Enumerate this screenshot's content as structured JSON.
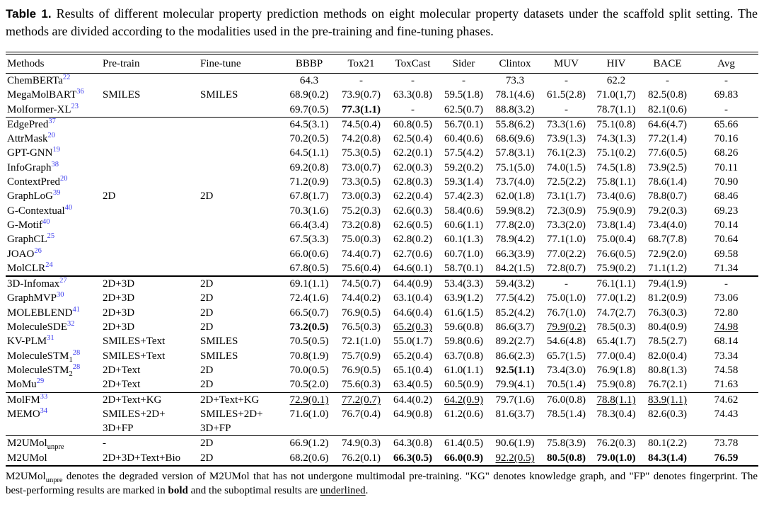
{
  "caption": {
    "label": "Table 1.",
    "text": "Results of different molecular property prediction methods on eight molecular property datasets under the scaffold split setting. The methods are divided according to the modalities used in the pre-training and fine-tuning phases."
  },
  "colors": {
    "citation_blue": "#3b3bee",
    "text": "#000000",
    "background": "#ffffff"
  },
  "table": {
    "columns": [
      "Methods",
      "Pre-train",
      "Fine-tune",
      "BBBP",
      "Tox21",
      "ToxCast",
      "Sider",
      "Clintox",
      "MUV",
      "HIV",
      "BACE",
      "Avg"
    ],
    "groups": [
      {
        "shared": {
          "pretrain": "SMILES",
          "finetune": "SMILES"
        },
        "rows": [
          {
            "method": "ChemBERTa",
            "ref": "22",
            "cells": [
              "64.3",
              "-",
              "-",
              "-",
              "73.3",
              "-",
              "62.2",
              "-",
              "-"
            ]
          },
          {
            "method": "MegaMolBART",
            "ref": "36",
            "cells": [
              "68.9(0.2)",
              "73.9(0.7)",
              "63.3(0.8)",
              "59.5(1.8)",
              "78.1(4.6)",
              "61.5(2.8)",
              "71.0(1,7)",
              "82.5(0.8)",
              "69.83"
            ]
          },
          {
            "method": "Molformer-XL",
            "ref": "23",
            "cells": [
              "69.7(0.5)",
              {
                "v": "77.3(1.1)",
                "b": true
              },
              "-",
              "62.5(0.7)",
              "88.8(3.2)",
              "-",
              "78.7(1.1)",
              "82.1(0.6)",
              "-"
            ]
          }
        ]
      },
      {
        "shared": {
          "pretrain": "2D",
          "finetune": "2D"
        },
        "rows": [
          {
            "method": "EdgePred",
            "ref": "37",
            "cells": [
              "64.5(3.1)",
              "74.5(0.4)",
              "60.8(0.5)",
              "56.7(0.1)",
              "55.8(6.2)",
              "73.3(1.6)",
              "75.1(0.8)",
              "64.6(4.7)",
              "65.66"
            ]
          },
          {
            "method": "AttrMask",
            "ref": "20",
            "cells": [
              "70.2(0.5)",
              "74.2(0.8)",
              "62.5(0.4)",
              "60.4(0.6)",
              "68.6(9.6)",
              "73.9(1.3)",
              "74.3(1.3)",
              "77.2(1.4)",
              "70.16"
            ]
          },
          {
            "method": "GPT-GNN",
            "ref": "19",
            "cells": [
              "64.5(1.1)",
              "75.3(0.5)",
              "62.2(0.1)",
              "57.5(4.2)",
              "57.8(3.1)",
              "76.1(2.3)",
              "75.1(0.2)",
              "77.6(0.5)",
              "68.26"
            ]
          },
          {
            "method": "InfoGraph",
            "ref": "38",
            "cells": [
              "69.2(0.8)",
              "73.0(0.7)",
              "62.0(0.3)",
              "59.2(0.2)",
              "75.1(5.0)",
              "74.0(1.5)",
              "74.5(1.8)",
              "73.9(2.5)",
              "70.11"
            ]
          },
          {
            "method": "ContextPred",
            "ref": "20",
            "cells": [
              "71.2(0.9)",
              "73.3(0.5)",
              "62.8(0.3)",
              "59.3(1.4)",
              "73.7(4.0)",
              "72.5(2.2)",
              "75.8(1.1)",
              "78.6(1.4)",
              "70.90"
            ]
          },
          {
            "method": "GraphLoG",
            "ref": "39",
            "cells": [
              "67.8(1.7)",
              "73.0(0.3)",
              "62.2(0.4)",
              "57.4(2.3)",
              "62.0(1.8)",
              "73.1(1.7)",
              "73.4(0.6)",
              "78.8(0.7)",
              "68.46"
            ]
          },
          {
            "method": "G-Contextual",
            "ref": "40",
            "cells": [
              "70.3(1.6)",
              "75.2(0.3)",
              "62.6(0.3)",
              "58.4(0.6)",
              "59.9(8.2)",
              "72.3(0.9)",
              "75.9(0.9)",
              "79.2(0.3)",
              "69.23"
            ]
          },
          {
            "method": "G-Motif",
            "ref": "40",
            "cells": [
              "66.4(3.4)",
              "73.2(0.8)",
              "62.6(0.5)",
              "60.6(1.1)",
              "77.8(2.0)",
              "73.3(2.0)",
              "73.8(1.4)",
              "73.4(4.0)",
              "70.14"
            ]
          },
          {
            "method": "GraphCL",
            "ref": "25",
            "cells": [
              "67.5(3.3)",
              "75.0(0.3)",
              "62.8(0.2)",
              "60.1(1.3)",
              "78.9(4.2)",
              "77.1(1.0)",
              "75.0(0.4)",
              "68.7(7.8)",
              "70.64"
            ]
          },
          {
            "method": "JOAO",
            "ref": "26",
            "cells": [
              "66.0(0.6)",
              "74.4(0.7)",
              "62.7(0.6)",
              "60.7(1.0)",
              "66.3(3.9)",
              "77.0(2.2)",
              "76.6(0.5)",
              "72.9(2.0)",
              "69.58"
            ]
          },
          {
            "method": "MolCLR",
            "ref": "24",
            "cells": [
              "67.8(0.5)",
              "75.6(0.4)",
              "64.6(0.1)",
              "58.7(0.1)",
              "84.2(1.5)",
              "72.8(0.7)",
              "75.9(0.2)",
              "71.1(1.2)",
              "71.34"
            ]
          }
        ]
      },
      {
        "rows": [
          {
            "method": "3D-Infomax",
            "ref": "27",
            "pretrain": "2D+3D",
            "finetune": "2D",
            "cells": [
              "69.1(1.1)",
              "74.5(0.7)",
              "64.4(0.9)",
              "53.4(3.3)",
              "59.4(3.2)",
              "-",
              "76.1(1.1)",
              "79.4(1.9)",
              "-"
            ]
          },
          {
            "method": "GraphMVP",
            "ref": "30",
            "pretrain": "2D+3D",
            "finetune": "2D",
            "cells": [
              "72.4(1.6)",
              "74.4(0.2)",
              "63.1(0.4)",
              "63.9(1.2)",
              "77.5(4.2)",
              "75.0(1.0)",
              "77.0(1.2)",
              "81.2(0.9)",
              "73.06"
            ]
          },
          {
            "method": "MOLEBLEND",
            "ref": "41",
            "pretrain": "2D+3D",
            "finetune": "2D",
            "cells": [
              "66.5(0.7)",
              "76.9(0.5)",
              "64.6(0.4)",
              "61.6(1.5)",
              "85.2(4.2)",
              "76.7(1.0)",
              "74.7(2.7)",
              "76.3(0.3)",
              "72.80"
            ]
          },
          {
            "method": "MoleculeSDE",
            "ref": "32",
            "pretrain": "2D+3D",
            "finetune": "2D",
            "cells": [
              {
                "v": "73.2(0.5)",
                "b": true
              },
              "76.5(0.3)",
              {
                "v": "65.2(0.3)",
                "u": true
              },
              "59.6(0.8)",
              "86.6(3.7)",
              {
                "v": "79.9(0.2)",
                "u": true
              },
              "78.5(0.3)",
              "80.4(0.9)",
              {
                "v": "74.98",
                "u": true
              }
            ]
          },
          {
            "method": "KV-PLM",
            "ref": "31",
            "pretrain": "SMILES+Text",
            "finetune": "SMILES",
            "cells": [
              "70.5(0.5)",
              "72.1(1.0)",
              "55.0(1.7)",
              "59.8(0.6)",
              "89.2(2.7)",
              "54.6(4.8)",
              "65.4(1.7)",
              "78.5(2.7)",
              "68.14"
            ]
          },
          {
            "method": "MoleculeSTM",
            "sub": "1",
            "ref": "28",
            "pretrain": "SMILES+Text",
            "finetune": "SMILES",
            "cells": [
              "70.8(1.9)",
              "75.7(0.9)",
              "65.2(0.4)",
              "63.7(0.8)",
              "86.6(2.3)",
              "65.7(1.5)",
              "77.0(0.4)",
              "82.0(0.4)",
              "73.34"
            ]
          },
          {
            "method": "MoleculeSTM",
            "sub": "2",
            "ref": "28",
            "pretrain": "2D+Text",
            "finetune": "2D",
            "cells": [
              "70.0(0.5)",
              "76.9(0.5)",
              "65.1(0.4)",
              "61.0(1.1)",
              {
                "v": "92.5(1.1)",
                "b": true
              },
              "73.4(3.0)",
              "76.9(1.8)",
              "80.8(1.3)",
              "74.58"
            ]
          },
          {
            "method": "MoMu",
            "ref": "29",
            "pretrain": "2D+Text",
            "finetune": "2D",
            "cells": [
              "70.5(2.0)",
              "75.6(0.3)",
              "63.4(0.5)",
              "60.5(0.9)",
              "79.9(4.1)",
              "70.5(1.4)",
              "75.9(0.8)",
              "76.7(2.1)",
              "71.63"
            ]
          }
        ]
      },
      {
        "rows": [
          {
            "method": "MolFM",
            "ref": "33",
            "pretrain": "2D+Text+KG",
            "finetune": "2D+Text+KG",
            "cells": [
              {
                "v": "72.9(0.1)",
                "u": true
              },
              {
                "v": "77.2(0.7)",
                "u": true
              },
              "64.4(0.2)",
              {
                "v": "64.2(0.9)",
                "u": true
              },
              "79.7(1.6)",
              "76.0(0.8)",
              {
                "v": "78.8(1.1)",
                "u": true
              },
              {
                "v": "83.9(1.1)",
                "u": true
              },
              "74.62"
            ]
          },
          {
            "method": "MEMO",
            "ref": "34",
            "pretrain": "SMILES+2D+\n3D+FP",
            "finetune": "SMILES+2D+\n3D+FP",
            "cells": [
              "71.6(1.0)",
              "76.7(0.4)",
              "64.9(0.8)",
              "61.2(0.6)",
              "81.6(3.7)",
              "78.5(1.4)",
              "78.3(0.4)",
              "82.6(0.3)",
              "74.43"
            ]
          }
        ]
      },
      {
        "rows": [
          {
            "method": "M2UMol",
            "sub": "unpre",
            "pretrain": "-",
            "finetune": "2D",
            "cells": [
              "66.9(1.2)",
              "74.9(0.3)",
              "64.3(0.8)",
              "61.4(0.5)",
              "90.6(1.9)",
              "75.8(3.9)",
              "76.2(0.3)",
              "80.1(2.2)",
              "73.78"
            ]
          },
          {
            "method": "M2UMol",
            "pretrain": "2D+3D+Text+Bio",
            "finetune": "2D",
            "cells": [
              "68.2(0.6)",
              "76.2(0.1)",
              {
                "v": "66.3(0.5)",
                "b": true
              },
              {
                "v": "66.0(0.9)",
                "b": true
              },
              {
                "v": "92.2(0.5)",
                "u": true
              },
              {
                "v": "80.5(0.8)",
                "b": true
              },
              {
                "v": "79.0(1.0)",
                "b": true
              },
              {
                "v": "84.3(1.4)",
                "b": true
              },
              {
                "v": "76.59",
                "b": true
              }
            ]
          }
        ]
      }
    ]
  },
  "footnote": {
    "segments": [
      {
        "t": "M2UMol"
      },
      {
        "t": "unpre",
        "sub": true
      },
      {
        "t": " denotes the degraded version of M2UMol that has not undergone multimodal pre-training. \"KG\" denotes knowledge graph, and \"FP\" denotes fingerprint. The best-performing results are marked in "
      },
      {
        "t": "bold",
        "b": true
      },
      {
        "t": " and the suboptimal results are "
      },
      {
        "t": "underlined",
        "u": true
      },
      {
        "t": "."
      }
    ]
  }
}
